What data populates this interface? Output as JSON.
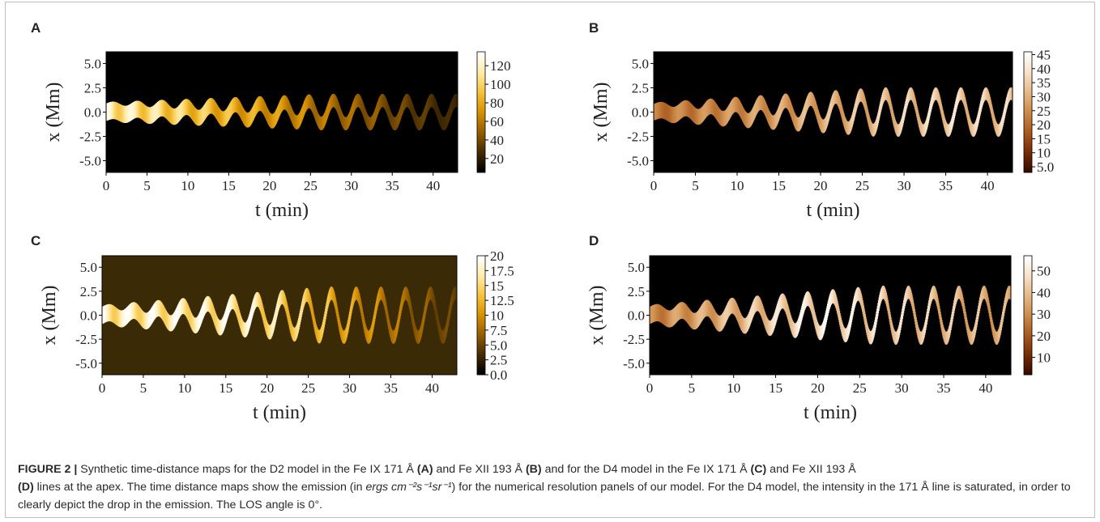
{
  "figure": {
    "caption": {
      "label": "FIGURE 2 |",
      "t1": " Synthetic time-distance maps for the D2 model in the Fe IX 171 Å ",
      "ref_a": "(A)",
      "t2": " and Fe XII 193 Å ",
      "ref_b": "(B)",
      "t3": " and for the D4 model in the Fe IX 171 Å ",
      "ref_c": "(C)",
      "t4": " and Fe XII 193 Å ",
      "ref_d": "(D)",
      "t5": " lines at the apex. The time distance maps show the emission (in ",
      "units": "ergs cm⁻²s⁻¹sr⁻¹",
      "t6": ") for the numerical resolution panels of our model. For the D4 model, the intensity in the 171 Å line is saturated, in order to clearly depict the drop in the emission. The LOS angle is 0°."
    }
  },
  "chart_data": [
    {
      "panel": "A",
      "type": "heatmap",
      "xlabel": "t (min)",
      "ylabel": "x (Mm)",
      "xlim": [
        0,
        43
      ],
      "ylim": [
        -6.2,
        6.2
      ],
      "xticks": [
        0,
        5,
        10,
        15,
        20,
        25,
        30,
        35,
        40
      ],
      "yticks": [
        5.0,
        2.5,
        0.0,
        -2.5,
        -5.0
      ],
      "colorbar": {
        "ticks": [
          120,
          100,
          80,
          60,
          40,
          20
        ],
        "min": 5,
        "max": 135,
        "colormap": "gold"
      },
      "background": "#000000",
      "signal": {
        "period_min": 3.0,
        "amp_start_Mm": 0.15,
        "amp_end_Mm": 1.2,
        "peak_at_min": 0,
        "fade_to_min": 43,
        "half_width_Mm": 0.9,
        "peak_brightness": 1.0,
        "late_brightness": 0.15
      }
    },
    {
      "panel": "B",
      "type": "heatmap",
      "xlabel": "t (min)",
      "ylabel": "x (Mm)",
      "xlim": [
        0,
        43
      ],
      "ylim": [
        -6.2,
        6.2
      ],
      "xticks": [
        0,
        5,
        10,
        15,
        20,
        25,
        30,
        35,
        40
      ],
      "yticks": [
        5.0,
        2.5,
        0.0,
        -2.5,
        -5.0
      ],
      "colorbar": {
        "ticks": [
          45,
          40,
          35,
          30,
          25,
          20,
          15,
          10,
          5
        ],
        "min": 3,
        "max": 46,
        "colormap": "copper"
      },
      "background": "#000000",
      "signal": {
        "period_min": 3.0,
        "amp_start_Mm": 0.15,
        "amp_end_Mm": 1.9,
        "peak_at_min": 35,
        "fade_to_min": 43,
        "half_width_Mm": 0.85,
        "peak_brightness": 0.9,
        "late_brightness": 0.85
      }
    },
    {
      "panel": "C",
      "type": "heatmap",
      "xlabel": "t (min)",
      "ylabel": "x (Mm)",
      "xlim": [
        0,
        43
      ],
      "ylim": [
        -6.2,
        6.2
      ],
      "xticks": [
        0,
        5,
        10,
        15,
        20,
        25,
        30,
        35,
        40
      ],
      "yticks": [
        5.0,
        2.5,
        0.0,
        -2.5,
        -5.0
      ],
      "colorbar": {
        "ticks": [
          20.0,
          17.5,
          15.0,
          12.5,
          10.0,
          7.5,
          5.0,
          2.5,
          0.0
        ],
        "min": 0.0,
        "max": 20.0,
        "colormap": "gold"
      },
      "background": "#3a2a05",
      "signal": {
        "period_min": 3.0,
        "amp_start_Mm": 0.2,
        "amp_end_Mm": 2.3,
        "peak_at_min": 17.5,
        "fade_to_min": 43,
        "half_width_Mm": 0.9,
        "peak_brightness": 1.0,
        "late_brightness": 0.25,
        "saturate_before_min": 18
      }
    },
    {
      "panel": "D",
      "type": "heatmap",
      "xlabel": "t (min)",
      "ylabel": "x (Mm)",
      "xlim": [
        0,
        43
      ],
      "ylim": [
        -6.2,
        6.2
      ],
      "xticks": [
        0,
        5,
        10,
        15,
        20,
        25,
        30,
        35,
        40
      ],
      "yticks": [
        5.0,
        2.5,
        0.0,
        -2.5,
        -5.0
      ],
      "colorbar": {
        "ticks": [
          50,
          40,
          30,
          20,
          10
        ],
        "min": 2,
        "max": 57,
        "colormap": "copper"
      },
      "background": "#000000",
      "signal": {
        "period_min": 3.0,
        "amp_start_Mm": 0.2,
        "amp_end_Mm": 2.4,
        "peak_at_min": 20,
        "fade_to_min": 43,
        "half_width_Mm": 0.9,
        "peak_brightness": 1.0,
        "late_brightness": 0.7
      }
    }
  ]
}
